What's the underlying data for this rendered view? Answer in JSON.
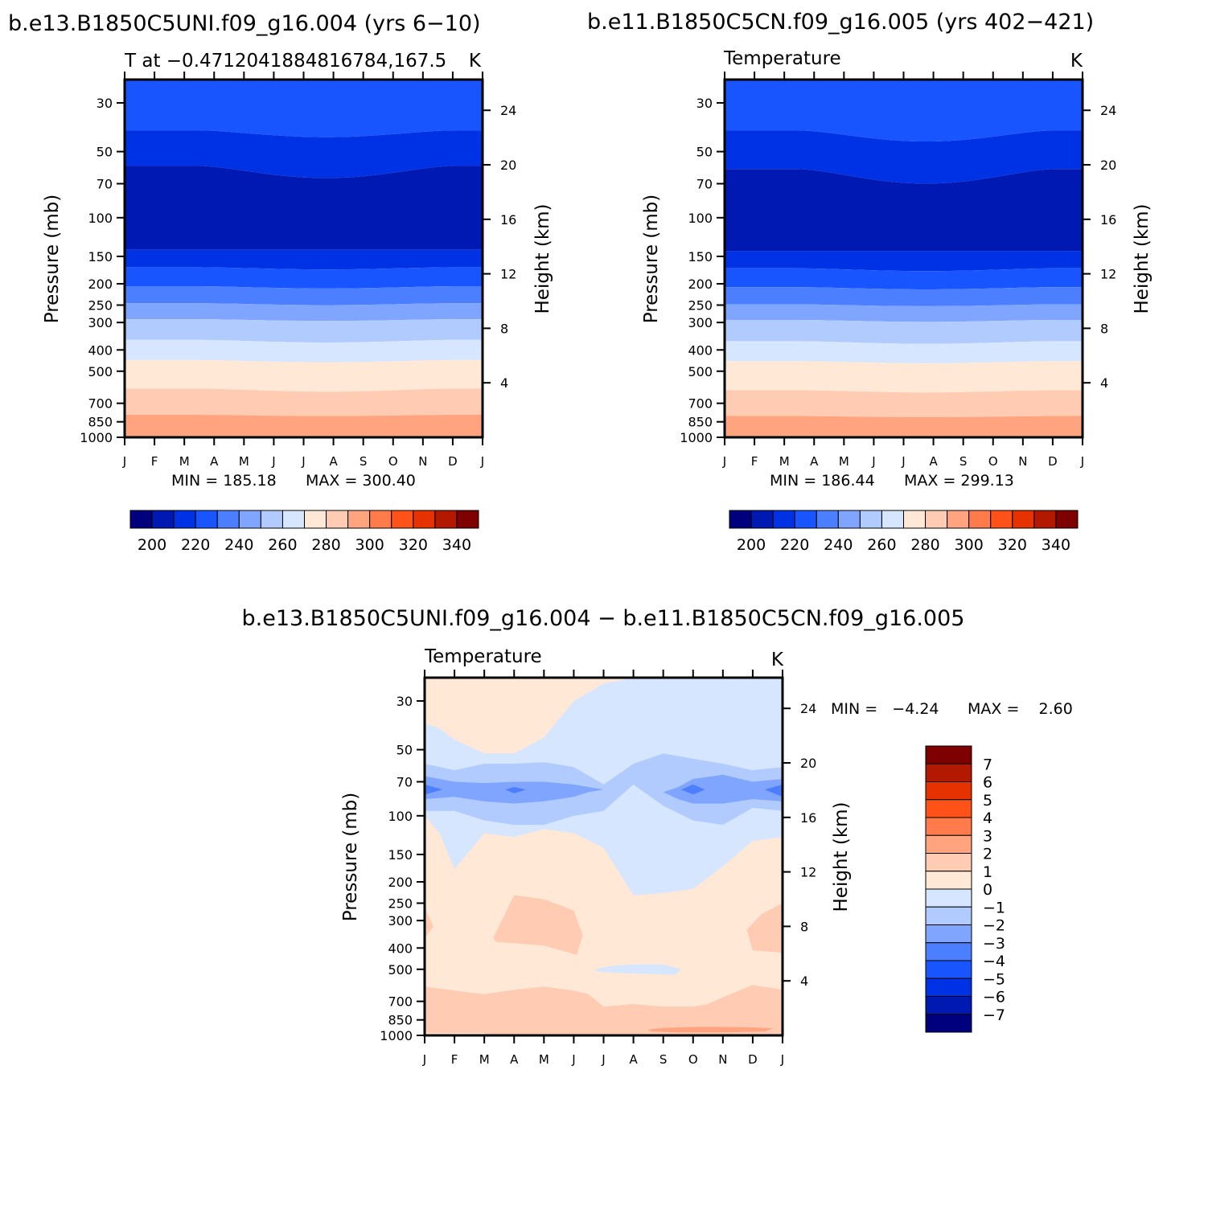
{
  "colors": {
    "abs_levels": [
      "#00007f",
      "#0019b2",
      "#0032e5",
      "#1955ff",
      "#4c7fff",
      "#7fa5ff",
      "#b2cbff",
      "#d6e6ff",
      "#ffe8d6",
      "#ffcbb2",
      "#ffa47f",
      "#ff7b4c",
      "#ff5219",
      "#e53200",
      "#b21900",
      "#7f0000"
    ],
    "diff_levels": [
      "#00007f",
      "#0019b2",
      "#0032e5",
      "#1955ff",
      "#4c7fff",
      "#7fa5ff",
      "#b2cbff",
      "#d6e6ff",
      "#ffe8d6",
      "#ffcbb2",
      "#ffa47f",
      "#ff7b4c",
      "#ff5219",
      "#e53200",
      "#b21900",
      "#7f0000"
    ]
  },
  "chart_data": [
    {
      "id": "panel1",
      "type": "contour",
      "title": "b.e13.B1850C5UNI.f09_g16.004 (yrs 6-10)",
      "subtitle_left": "T at -0.4712041884816784,167.5",
      "subtitle_right": "K",
      "xlabel": "",
      "ylabel": "Pressure (mb)",
      "ylabel_right": "Height (km)",
      "x_ticks": [
        "J",
        "F",
        "M",
        "A",
        "M",
        "J",
        "J",
        "A",
        "S",
        "O",
        "N",
        "D",
        "J"
      ],
      "pressure_ticks": [
        30,
        50,
        70,
        100,
        150,
        200,
        250,
        300,
        400,
        500,
        700,
        850,
        1000
      ],
      "height_ticks": [
        24,
        20,
        16,
        12,
        8,
        4
      ],
      "min_label": "MIN = 185.18",
      "max_label": "MAX = 300.40",
      "min": 185.18,
      "max": 300.4,
      "colorbar_labels": [
        "200",
        "220",
        "240",
        "260",
        "280",
        "300",
        "320",
        "340"
      ],
      "contour_bands_pressure_mb": {
        "boundaries_jan": [
          23,
          40,
          58,
          140,
          168,
          205,
          245,
          290,
          360,
          445,
          600,
          790,
          990
        ],
        "boundaries_aug": [
          23,
          43,
          66,
          140,
          172,
          210,
          250,
          295,
          370,
          455,
          620,
          800,
          990
        ],
        "band_values": [
          220,
          210,
          200,
          210,
          220,
          230,
          240,
          250,
          260,
          270,
          280,
          290,
          300
        ]
      }
    },
    {
      "id": "panel2",
      "type": "contour",
      "title": "b.e11.B1850C5CN.f09_g16.005 (yrs 402-421)",
      "subtitle_left": "Temperature",
      "subtitle_right": "K",
      "xlabel": "",
      "ylabel": "Pressure (mb)",
      "ylabel_right": "Height (km)",
      "x_ticks": [
        "J",
        "F",
        "M",
        "A",
        "M",
        "J",
        "J",
        "A",
        "S",
        "O",
        "N",
        "D",
        "J"
      ],
      "pressure_ticks": [
        30,
        50,
        70,
        100,
        150,
        200,
        250,
        300,
        400,
        500,
        700,
        850,
        1000
      ],
      "height_ticks": [
        24,
        20,
        16,
        12,
        8,
        4
      ],
      "min_label": "MIN = 186.44",
      "max_label": "MAX = 299.13",
      "min": 186.44,
      "max": 299.13,
      "colorbar_labels": [
        "200",
        "220",
        "240",
        "260",
        "280",
        "300",
        "320",
        "340"
      ],
      "contour_bands_pressure_mb": {
        "boundaries_jan": [
          23,
          40,
          60,
          142,
          170,
          207,
          248,
          292,
          365,
          450,
          610,
          800,
          990
        ],
        "boundaries_aug": [
          23,
          45,
          70,
          142,
          175,
          212,
          253,
          298,
          375,
          460,
          625,
          810,
          990
        ],
        "band_values": [
          220,
          210,
          200,
          210,
          220,
          230,
          240,
          250,
          260,
          270,
          280,
          290,
          300
        ]
      }
    },
    {
      "id": "panel3",
      "type": "contour",
      "title": "b.e13.B1850C5UNI.f09_g16.004 - b.e11.B1850C5CN.f09_g16.005",
      "subtitle_left": "Temperature",
      "subtitle_right": "K",
      "xlabel": "",
      "ylabel": "Pressure (mb)",
      "ylabel_right": "Height (km)",
      "x_ticks": [
        "J",
        "F",
        "M",
        "A",
        "M",
        "J",
        "J",
        "A",
        "S",
        "O",
        "N",
        "D",
        "J"
      ],
      "pressure_ticks": [
        30,
        50,
        70,
        100,
        150,
        200,
        250,
        300,
        400,
        500,
        700,
        850,
        1000
      ],
      "height_ticks": [
        24,
        20,
        16,
        12,
        8,
        4
      ],
      "min_label": "MIN =   -4.24",
      "max_label": "MAX =    2.60",
      "min": -4.24,
      "max": 2.6,
      "colorbar_labels": [
        "7",
        "6",
        "5",
        "4",
        "3",
        "2",
        "1",
        "0",
        "-1",
        "-2",
        "-3",
        "-4",
        "-5",
        "-6",
        "-7"
      ],
      "regions": [
        {
          "value_range": [
            -1,
            0
          ],
          "description_months": "upper levels 30-150 mb, Feb-Dec"
        },
        {
          "value_range": [
            -2,
            -1
          ],
          "months": "Jan-Dec",
          "pressure_mb": [
            55,
            100
          ]
        },
        {
          "value_range": [
            -3,
            -2
          ],
          "months": "Jan-Dec",
          "pressure_mb": [
            65,
            90
          ]
        },
        {
          "value_range": [
            -4,
            -3
          ],
          "months": "Jan, Apr, Oct, Dec",
          "pressure_mb": [
            72,
            82
          ]
        },
        {
          "value_range": [
            1,
            2
          ],
          "months": "Mar-Jun, Dec-Jan",
          "pressure_mb": [
            220,
            420
          ]
        },
        {
          "value_range": [
            1,
            2
          ],
          "months": "Jan-Dec",
          "pressure_mb": [
            560,
            1000
          ]
        },
        {
          "value_range": [
            2,
            3
          ],
          "months": "Aug-Dec",
          "pressure_mb": [
            900,
            1000
          ]
        },
        {
          "value_range": [
            -1,
            0
          ],
          "months": "Jul-Sep",
          "pressure_mb": [
            480,
            530
          ]
        }
      ]
    }
  ]
}
